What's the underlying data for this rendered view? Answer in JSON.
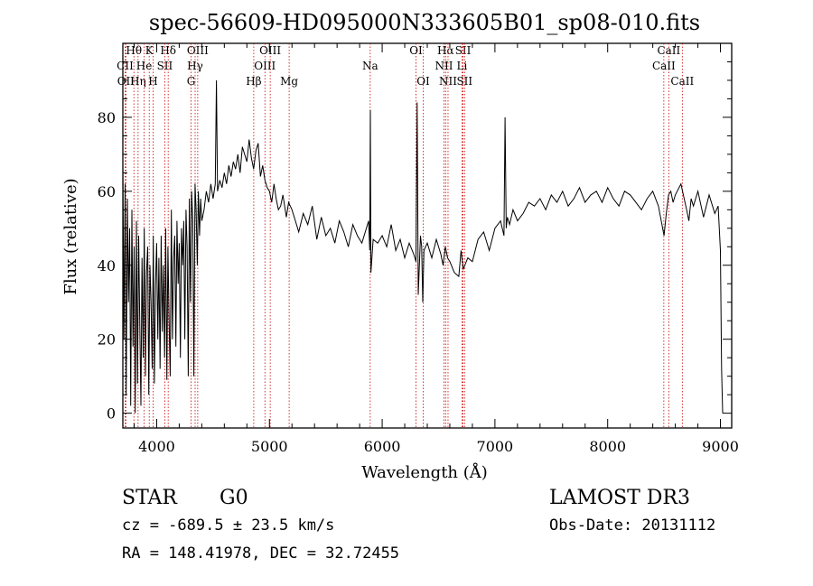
{
  "chart_data": {
    "type": "line",
    "title": "spec-56609-HD095000N333605B01_sp08-010.fits",
    "xlabel": "Wavelength (Å)",
    "ylabel": "Flux (relative)",
    "xlim": [
      3700,
      9100
    ],
    "ylim": [
      -4,
      100
    ],
    "x_ticks": [
      4000,
      5000,
      6000,
      7000,
      8000,
      9000
    ],
    "y_ticks": [
      0,
      20,
      40,
      60,
      80
    ],
    "series": [
      {
        "name": "flux",
        "x": [
          3700,
          3710,
          3720,
          3730,
          3740,
          3750,
          3760,
          3770,
          3780,
          3790,
          3800,
          3810,
          3820,
          3830,
          3840,
          3850,
          3860,
          3870,
          3880,
          3890,
          3900,
          3910,
          3920,
          3930,
          3940,
          3950,
          3960,
          3970,
          3980,
          3990,
          4000,
          4010,
          4020,
          4030,
          4040,
          4050,
          4060,
          4070,
          4080,
          4090,
          4100,
          4110,
          4120,
          4130,
          4140,
          4150,
          4160,
          4170,
          4180,
          4190,
          4200,
          4210,
          4220,
          4230,
          4240,
          4250,
          4260,
          4270,
          4280,
          4290,
          4300,
          4310,
          4320,
          4330,
          4340,
          4350,
          4360,
          4370,
          4380,
          4390,
          4400,
          4420,
          4440,
          4460,
          4480,
          4500,
          4520,
          4530,
          4540,
          4560,
          4580,
          4600,
          4620,
          4640,
          4660,
          4680,
          4700,
          4720,
          4740,
          4760,
          4780,
          4800,
          4820,
          4840,
          4860,
          4880,
          4900,
          4920,
          4940,
          4960,
          4980,
          5000,
          5020,
          5040,
          5060,
          5080,
          5100,
          5120,
          5150,
          5170,
          5200,
          5230,
          5260,
          5300,
          5340,
          5380,
          5420,
          5460,
          5500,
          5540,
          5580,
          5620,
          5660,
          5700,
          5740,
          5780,
          5820,
          5860,
          5880,
          5890,
          5895,
          5900,
          5920,
          5960,
          6000,
          6040,
          6080,
          6120,
          6160,
          6200,
          6240,
          6280,
          6300,
          6310,
          6320,
          6340,
          6350,
          6360,
          6370,
          6400,
          6440,
          6480,
          6520,
          6540,
          6560,
          6580,
          6600,
          6640,
          6680,
          6700,
          6720,
          6760,
          6800,
          6850,
          6900,
          6950,
          7000,
          7050,
          7080,
          7090,
          7100,
          7110,
          7130,
          7160,
          7200,
          7250,
          7300,
          7350,
          7400,
          7450,
          7500,
          7550,
          7600,
          7650,
          7700,
          7750,
          7800,
          7850,
          7900,
          7950,
          8000,
          8050,
          8100,
          8150,
          8200,
          8250,
          8300,
          8350,
          8400,
          8450,
          8500,
          8520,
          8540,
          8560,
          8580,
          8600,
          8650,
          8700,
          8720,
          8740,
          8760,
          8800,
          8850,
          8900,
          8950,
          8980,
          9000,
          9010,
          9020
        ],
        "values": [
          68,
          20,
          62,
          5,
          58,
          30,
          50,
          2,
          55,
          18,
          45,
          0,
          52,
          8,
          48,
          25,
          2,
          42,
          15,
          50,
          10,
          38,
          45,
          5,
          40,
          30,
          12,
          48,
          8,
          35,
          46,
          20,
          42,
          12,
          48,
          22,
          40,
          15,
          50,
          9,
          45,
          25,
          10,
          55,
          20,
          42,
          48,
          18,
          52,
          35,
          46,
          15,
          50,
          40,
          52,
          20,
          55,
          45,
          10,
          58,
          30,
          60,
          52,
          10,
          62,
          55,
          40,
          60,
          48,
          58,
          52,
          55,
          60,
          57,
          62,
          58,
          62,
          90,
          60,
          63,
          61,
          65,
          62,
          67,
          64,
          68,
          66,
          70,
          65,
          72,
          70,
          68,
          74,
          69,
          66,
          71,
          73,
          64,
          67,
          63,
          61,
          60,
          57,
          62,
          58,
          55,
          56,
          59,
          53,
          57,
          55,
          52,
          49,
          54,
          51,
          56,
          47,
          53,
          48,
          50,
          46,
          52,
          49,
          45,
          51,
          48,
          46,
          50,
          52,
          44,
          82,
          38,
          47,
          46,
          48,
          45,
          51,
          44,
          47,
          42,
          46,
          43,
          41,
          84,
          32,
          48,
          45,
          30,
          44,
          46,
          42,
          47,
          43,
          40,
          45,
          42,
          41,
          38,
          37,
          44,
          39,
          42,
          41,
          47,
          49,
          44,
          50,
          52,
          48,
          80,
          50,
          53,
          51,
          55,
          52,
          54,
          57,
          56,
          58,
          55,
          59,
          57,
          60,
          56,
          58,
          61,
          57,
          59,
          60,
          57,
          61,
          58,
          56,
          60,
          59,
          57,
          55,
          58,
          60,
          56,
          48,
          54,
          59,
          60,
          57,
          59,
          62,
          55,
          52,
          58,
          56,
          60,
          53,
          59,
          54,
          56,
          44,
          12,
          0
        ]
      }
    ],
    "line_markers": [
      {
        "name": "Hθ",
        "wavelength": 3798,
        "row": 1
      },
      {
        "name": "CII",
        "wavelength": 3720,
        "row": 2
      },
      {
        "name": "OII",
        "wavelength": 3727,
        "row": 3
      },
      {
        "name": "Hη",
        "wavelength": 3835,
        "row": 3
      },
      {
        "name": "He",
        "wavelength": 3889,
        "row": 2
      },
      {
        "name": "K",
        "wavelength": 3934,
        "row": 1
      },
      {
        "name": "H",
        "wavelength": 3968,
        "row": 3
      },
      {
        "name": "SII",
        "wavelength": 4072,
        "row": 2
      },
      {
        "name": "Hδ",
        "wavelength": 4102,
        "row": 1
      },
      {
        "name": "OIII",
        "wavelength": 4364,
        "row": 1
      },
      {
        "name": "Hγ",
        "wavelength": 4341,
        "row": 2
      },
      {
        "name": "G",
        "wavelength": 4305,
        "row": 3
      },
      {
        "name": "Hβ",
        "wavelength": 4861,
        "row": 3
      },
      {
        "name": "OIII",
        "wavelength": 4960,
        "row": 2
      },
      {
        "name": "OIII",
        "wavelength": 5007,
        "row": 1
      },
      {
        "name": "Mg",
        "wavelength": 5175,
        "row": 3
      },
      {
        "name": "Na",
        "wavelength": 5894,
        "row": 2
      },
      {
        "name": "OI",
        "wavelength": 6300,
        "row": 1
      },
      {
        "name": "OI",
        "wavelength": 6364,
        "row": 3
      },
      {
        "name": "Hα",
        "wavelength": 6563,
        "row": 1
      },
      {
        "name": "NII",
        "wavelength": 6548,
        "row": 2
      },
      {
        "name": "NII",
        "wavelength": 6584,
        "row": 3
      },
      {
        "name": "SII",
        "wavelength": 6717,
        "row": 1
      },
      {
        "name": "Li",
        "wavelength": 6708,
        "row": 2
      },
      {
        "name": "SII",
        "wavelength": 6731,
        "row": 3
      },
      {
        "name": "CaII",
        "wavelength": 8542,
        "row": 1
      },
      {
        "name": "CaII",
        "wavelength": 8498,
        "row": 2
      },
      {
        "name": "CaII",
        "wavelength": 8662,
        "row": 3
      }
    ],
    "colors": {
      "spectrum": "#000000",
      "markers": "#cc0000",
      "axes": "#000000",
      "background": "#ffffff"
    }
  },
  "info": {
    "class": "STAR",
    "subclass": "G0",
    "survey": "LAMOST DR3",
    "cz": "cz = -689.5 ± 23.5 km/s",
    "obs_date": "Obs-Date: 20131112",
    "radec": "RA = 148.41978, DEC =  32.72455"
  }
}
